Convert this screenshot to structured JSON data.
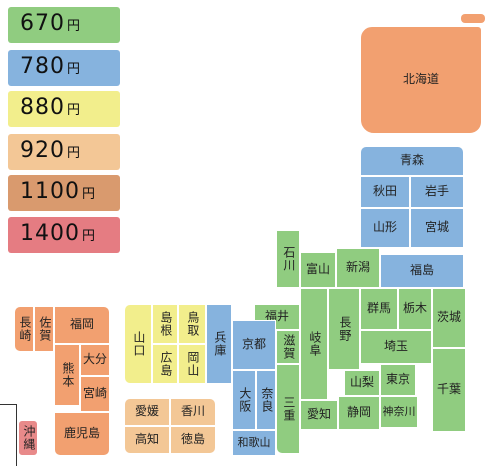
{
  "legend": [
    {
      "price": "670",
      "unit": "円",
      "color": "#90cc80"
    },
    {
      "price": "780",
      "unit": "円",
      "color": "#86b3de"
    },
    {
      "price": "880",
      "unit": "円",
      "color": "#f2ee8c"
    },
    {
      "price": "920",
      "unit": "円",
      "color": "#f3c796"
    },
    {
      "price": "1100",
      "unit": "円",
      "color": "#d99a6e"
    },
    {
      "price": "1400",
      "unit": "円",
      "color": "#e57c82"
    }
  ],
  "prefectures": {
    "hokkaido": "北海道",
    "aomori": "青森",
    "akita": "秋田",
    "iwate": "岩手",
    "yamagata": "山形",
    "miyagi": "宮城",
    "fukushima": "福島",
    "niigata": "新潟",
    "toyama": "富山",
    "ishikawa": "石川",
    "fukui": "福井",
    "gifu": "岐阜",
    "nagano": "長野",
    "gunma": "群馬",
    "tochigi": "栃木",
    "ibaraki": "茨城",
    "saitama": "埼玉",
    "yamanashi": "山梨",
    "tokyo": "東京",
    "chiba": "千葉",
    "kanagawa": "神奈川",
    "shizuoka": "静岡",
    "aichi": "愛知",
    "mie": "三重",
    "shiga": "滋賀",
    "kyoto": "京都",
    "osaka": "大阪",
    "nara": "奈良",
    "wakayama": "和歌山",
    "hyogo": "兵庫",
    "tottori": "鳥取",
    "shimane": "島根",
    "okayama": "岡山",
    "hiroshima": "広島",
    "yamaguchi": "山口",
    "kagawa": "香川",
    "ehime": "愛媛",
    "tokushima": "徳島",
    "kochi": "高知",
    "fukuoka": "福岡",
    "saga": "佐賀",
    "nagasaki": "長崎",
    "oita": "大分",
    "kumamoto": "熊本",
    "miyazaki": "宮崎",
    "kagoshima": "鹿児島",
    "okinawa": "沖縄"
  }
}
